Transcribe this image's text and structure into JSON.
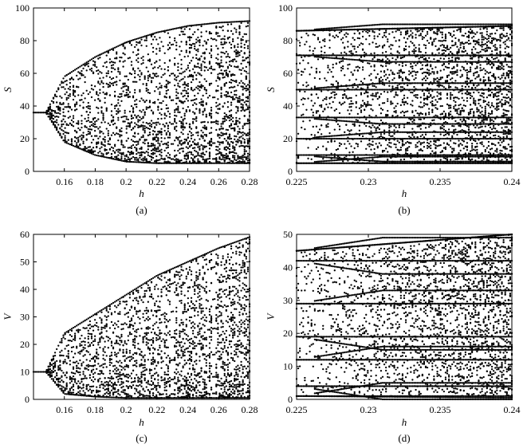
{
  "chart_data": [
    {
      "panel": "(a)",
      "type": "scatter",
      "xlabel": "h",
      "ylabel": "S",
      "xlim": [
        0.14,
        0.28
      ],
      "ylim": [
        0,
        100
      ],
      "xticks": [
        0.16,
        0.18,
        0.2,
        0.22,
        0.24,
        0.26,
        0.28
      ],
      "xtick_labels": [
        "0.16",
        "0.18",
        "0.2",
        "0.22",
        "0.24",
        "0.26",
        "0.28"
      ],
      "yticks": [
        0,
        20,
        40,
        60,
        80,
        100
      ],
      "ytick_labels": [
        "0",
        "20",
        "40",
        "60",
        "80",
        "100"
      ],
      "fixed_point": 36,
      "first_bifurcation_h": 0.148,
      "upper_envelope": [
        [
          0.148,
          36
        ],
        [
          0.16,
          58
        ],
        [
          0.18,
          70
        ],
        [
          0.2,
          79
        ],
        [
          0.22,
          85
        ],
        [
          0.24,
          89
        ],
        [
          0.26,
          91
        ],
        [
          0.28,
          92
        ]
      ],
      "lower_envelope": [
        [
          0.148,
          36
        ],
        [
          0.16,
          18
        ],
        [
          0.18,
          10
        ],
        [
          0.2,
          6
        ],
        [
          0.22,
          5
        ],
        [
          0.24,
          5
        ],
        [
          0.26,
          5
        ],
        [
          0.28,
          5
        ]
      ],
      "periodic_windows_h": [
        0.224,
        0.23,
        0.253,
        0.257
      ],
      "grid": false
    },
    {
      "panel": "(b)",
      "type": "scatter",
      "xlabel": "h",
      "ylabel": "S",
      "xlim": [
        0.225,
        0.24
      ],
      "ylim": [
        0,
        100
      ],
      "xticks": [
        0.225,
        0.23,
        0.235,
        0.24
      ],
      "xtick_labels": [
        "0.225",
        "0.23",
        "0.235",
        "0.24"
      ],
      "yticks": [
        0,
        20,
        40,
        60,
        80,
        100
      ],
      "ytick_labels": [
        "0",
        "20",
        "40",
        "60",
        "80",
        "100"
      ],
      "branch_values_at_left": [
        86,
        71,
        50,
        33,
        20,
        10,
        5
      ],
      "upper_envelope": [
        [
          0.225,
          86
        ],
        [
          0.24,
          89
        ]
      ],
      "lower_envelope": [
        [
          0.225,
          5
        ],
        [
          0.24,
          5
        ]
      ],
      "grid": false
    },
    {
      "panel": "(c)",
      "type": "scatter",
      "xlabel": "h",
      "ylabel": "V",
      "xlim": [
        0.14,
        0.28
      ],
      "ylim": [
        0,
        60
      ],
      "xticks": [
        0.16,
        0.18,
        0.2,
        0.22,
        0.24,
        0.26,
        0.28
      ],
      "xtick_labels": [
        "0.16",
        "0.18",
        "0.2",
        "0.22",
        "0.24",
        "0.26",
        "0.28"
      ],
      "yticks": [
        0,
        10,
        20,
        30,
        40,
        50,
        60
      ],
      "ytick_labels": [
        "0",
        "10",
        "20",
        "30",
        "40",
        "50",
        "60"
      ],
      "fixed_point": 10,
      "first_bifurcation_h": 0.148,
      "upper_envelope": [
        [
          0.148,
          10
        ],
        [
          0.16,
          24
        ],
        [
          0.18,
          31
        ],
        [
          0.2,
          38
        ],
        [
          0.22,
          45
        ],
        [
          0.24,
          50
        ],
        [
          0.26,
          55
        ],
        [
          0.28,
          59
        ]
      ],
      "lower_envelope": [
        [
          0.148,
          10
        ],
        [
          0.16,
          2
        ],
        [
          0.18,
          1
        ],
        [
          0.2,
          0.5
        ],
        [
          0.28,
          0.5
        ]
      ],
      "periodic_windows_h": [
        0.224,
        0.23,
        0.253,
        0.257
      ],
      "grid": false
    },
    {
      "panel": "(d)",
      "type": "scatter",
      "xlabel": "h",
      "ylabel": "V",
      "xlim": [
        0.225,
        0.24
      ],
      "ylim": [
        0,
        50
      ],
      "xticks": [
        0.225,
        0.23,
        0.235,
        0.24
      ],
      "xtick_labels": [
        "0.225",
        "0.23",
        "0.235",
        "0.24"
      ],
      "yticks": [
        0,
        10,
        20,
        30,
        40,
        50
      ],
      "ytick_labels": [
        "0",
        "10",
        "20",
        "30",
        "40",
        "50"
      ],
      "branch_values_at_left": [
        45,
        42,
        29,
        19,
        12,
        4,
        1
      ],
      "upper_envelope": [
        [
          0.225,
          45
        ],
        [
          0.24,
          50
        ]
      ],
      "lower_envelope": [
        [
          0.225,
          1
        ],
        [
          0.24,
          0.5
        ]
      ],
      "grid": false
    }
  ]
}
